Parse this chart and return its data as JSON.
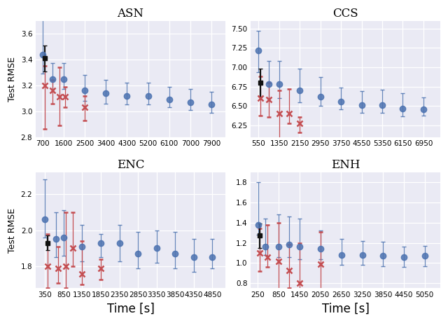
{
  "subplots": [
    {
      "title": "ASN",
      "ylabel": "Test RMSE",
      "xlabel": "",
      "xticks": [
        700,
        1600,
        2500,
        3400,
        4300,
        5200,
        6100,
        7000,
        7900
      ],
      "xlim": [
        400,
        8500
      ],
      "ylim": [
        2.8,
        3.7
      ],
      "yticks": [
        2.8,
        3.0,
        3.2,
        3.4,
        3.6
      ],
      "blue_x": [
        700,
        1100,
        1600,
        2500,
        3400,
        4300,
        5200,
        6100,
        7000,
        7900
      ],
      "blue_y": [
        3.44,
        3.25,
        3.25,
        3.16,
        3.14,
        3.12,
        3.12,
        3.09,
        3.07,
        3.05
      ],
      "blue_yerr_lo": [
        0.15,
        0.08,
        0.08,
        0.08,
        0.08,
        0.07,
        0.07,
        0.06,
        0.06,
        0.06
      ],
      "blue_yerr_hi": [
        0.32,
        0.12,
        0.12,
        0.12,
        0.1,
        0.1,
        0.1,
        0.1,
        0.1,
        0.1
      ],
      "red_x": [
        780,
        1100,
        1400,
        1650,
        2500
      ],
      "red_y": [
        3.2,
        3.16,
        3.11,
        3.11,
        3.03
      ],
      "red_yerr_lo": [
        0.34,
        0.1,
        0.22,
        0.08,
        0.1
      ],
      "red_yerr_hi": [
        0.15,
        0.08,
        0.23,
        0.08,
        0.09
      ],
      "black_x": [
        780
      ],
      "black_y": [
        3.41
      ],
      "black_yerr_lo": [
        0.1
      ],
      "black_yerr_hi": [
        0.1
      ]
    },
    {
      "title": "CCS",
      "ylabel": "",
      "xlabel": "",
      "xticks": [
        550,
        1350,
        2150,
        2950,
        3750,
        4550,
        5350,
        6150,
        6950
      ],
      "xlim": [
        250,
        7600
      ],
      "ylim": [
        6.1,
        7.6
      ],
      "yticks": [
        6.25,
        6.5,
        6.75,
        7.0,
        7.25,
        7.5
      ],
      "blue_x": [
        550,
        950,
        1350,
        2150,
        2950,
        3750,
        4550,
        5350,
        6150,
        6950
      ],
      "blue_y": [
        7.22,
        6.78,
        6.78,
        6.7,
        6.62,
        6.56,
        6.51,
        6.51,
        6.47,
        6.46
      ],
      "blue_yerr_lo": [
        0.28,
        0.18,
        0.18,
        0.15,
        0.12,
        0.1,
        0.1,
        0.1,
        0.1,
        0.08
      ],
      "blue_yerr_hi": [
        0.25,
        0.3,
        0.3,
        0.28,
        0.25,
        0.18,
        0.18,
        0.2,
        0.2,
        0.15
      ],
      "red_x": [
        620,
        950,
        1350,
        1750,
        2150
      ],
      "red_y": [
        6.6,
        6.58,
        6.4,
        6.4,
        6.28
      ],
      "red_yerr_lo": [
        0.22,
        0.22,
        0.45,
        0.12,
        0.12
      ],
      "red_yerr_hi": [
        0.28,
        0.22,
        0.3,
        0.32,
        0.08
      ],
      "black_x": [
        620
      ],
      "black_y": [
        6.8
      ],
      "black_yerr_lo": [
        0.18
      ],
      "black_yerr_hi": [
        0.18
      ]
    },
    {
      "title": "ENC",
      "ylabel": "Test RMSE",
      "xlabel": "Time [s]",
      "xticks": [
        350,
        850,
        1350,
        1850,
        2350,
        2850,
        3350,
        3850,
        4350,
        4850
      ],
      "xlim": [
        100,
        5200
      ],
      "ylim": [
        1.68,
        2.32
      ],
      "yticks": [
        1.8,
        2.0,
        2.2
      ],
      "blue_x": [
        350,
        650,
        850,
        1350,
        1850,
        2350,
        2850,
        3350,
        3850,
        4350,
        4850
      ],
      "blue_y": [
        2.06,
        1.95,
        1.96,
        1.91,
        1.93,
        1.93,
        1.87,
        1.9,
        1.87,
        1.85,
        1.85
      ],
      "blue_yerr_lo": [
        0.1,
        0.1,
        0.1,
        0.08,
        0.08,
        0.1,
        0.08,
        0.08,
        0.08,
        0.08,
        0.06
      ],
      "blue_yerr_hi": [
        0.22,
        0.15,
        0.15,
        0.12,
        0.05,
        0.1,
        0.12,
        0.1,
        0.12,
        0.1,
        0.1
      ],
      "red_x": [
        420,
        700,
        900,
        1100,
        1350,
        1850
      ],
      "red_y": [
        1.8,
        1.79,
        1.8,
        1.9,
        1.76,
        1.79
      ],
      "red_yerr_lo": [
        0.12,
        0.08,
        0.12,
        0.1,
        0.06,
        0.06
      ],
      "red_yerr_hi": [
        0.18,
        0.12,
        0.3,
        0.2,
        0.18,
        0.05
      ],
      "black_x": [
        420
      ],
      "black_y": [
        1.93
      ],
      "black_yerr_lo": [
        0.04
      ],
      "black_yerr_hi": [
        0.04
      ]
    },
    {
      "title": "ENH",
      "ylabel": "",
      "xlabel": "Time [s]",
      "xticks": [
        250,
        850,
        1450,
        2050,
        2650,
        3250,
        3850,
        4450,
        5050
      ],
      "xlim": [
        50,
        5500
      ],
      "ylim": [
        0.75,
        1.9
      ],
      "yticks": [
        0.8,
        1.0,
        1.2,
        1.4,
        1.6,
        1.8
      ],
      "blue_x": [
        260,
        460,
        860,
        1160,
        1460,
        2060,
        2660,
        3260,
        3860,
        4460,
        5060
      ],
      "blue_y": [
        1.38,
        1.16,
        1.16,
        1.18,
        1.16,
        1.14,
        1.08,
        1.08,
        1.07,
        1.06,
        1.07
      ],
      "blue_yerr_lo": [
        0.1,
        0.08,
        0.1,
        0.12,
        0.12,
        0.1,
        0.1,
        0.1,
        0.1,
        0.1,
        0.1
      ],
      "blue_yerr_hi": [
        0.42,
        0.28,
        0.32,
        0.28,
        0.28,
        0.18,
        0.16,
        0.14,
        0.14,
        0.1,
        0.1
      ],
      "red_x": [
        310,
        530,
        860,
        1160,
        1460,
        2060
      ],
      "red_y": [
        1.1,
        1.06,
        1.02,
        0.93,
        0.8,
        0.99
      ],
      "red_yerr_lo": [
        0.18,
        0.1,
        0.28,
        0.18,
        0.08,
        0.25
      ],
      "red_yerr_hi": [
        0.24,
        0.32,
        0.38,
        0.25,
        0.4,
        0.32
      ],
      "black_x": [
        310
      ],
      "black_y": [
        1.27
      ],
      "black_yerr_lo": [
        0.12
      ],
      "black_yerr_hi": [
        0.12
      ]
    }
  ],
  "blue_color": "#4C72B0",
  "red_color": "#C44E52",
  "black_color": "#111111",
  "bg_color": "#EAEAF4",
  "grid_color": "#FFFFFF",
  "fig_bg": "#FFFFFF",
  "title_fontsize": 12,
  "label_fontsize": 9,
  "tick_fontsize": 7.5,
  "marker_size": 6,
  "capsize": 2,
  "linewidth": 0.9
}
